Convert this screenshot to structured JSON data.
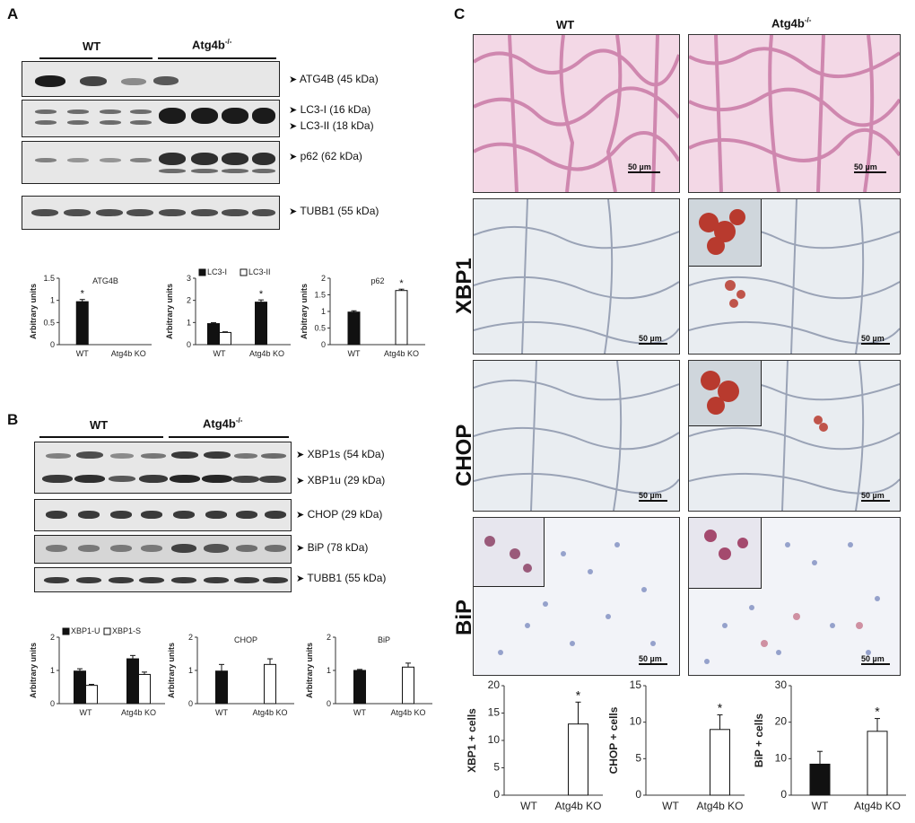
{
  "panelA": {
    "letter": "A",
    "wt": "WT",
    "ko": "Atg4b",
    "ko_sup": "-/-",
    "blots": [
      {
        "labels": [
          "ATG4B (45 kDa)"
        ]
      },
      {
        "labels": [
          "LC3-I (16 kDa)",
          "LC3-II (18 kDa)"
        ]
      },
      {
        "labels": [
          "p62 (62 kDa)"
        ]
      },
      {
        "labels": [
          "TUBB1 (55 kDa)"
        ]
      }
    ]
  },
  "panelB": {
    "letter": "B",
    "wt": "WT",
    "ko": "Atg4b",
    "ko_sup": "-/-",
    "blots": [
      {
        "labels": [
          "XBP1s (54 kDa)",
          "XBP1u (29 kDa)"
        ]
      },
      {
        "labels": [
          "CHOP (29 kDa)"
        ]
      },
      {
        "labels": [
          "BiP (78 kDa)"
        ]
      },
      {
        "labels": [
          "TUBB1 (55 kDa)"
        ]
      }
    ]
  },
  "panelC": {
    "letter": "C",
    "col_wt": "WT",
    "col_ko": "Atg4b",
    "ko_sup": "-/-",
    "rows": [
      "XBP1",
      "CHOP",
      "BiP"
    ],
    "scale": "50 µm"
  },
  "colors": {
    "black_bar": "#111111",
    "white_bar": "#ffffff",
    "he_stain": "#f3d8e6",
    "ihc_bg": "#e9edf1",
    "dab": "#b83a2e"
  },
  "chart_data": [
    {
      "id": "A-atg4b",
      "type": "bar",
      "title": "ATG4B",
      "ylabel": "Arbitrary units",
      "ylim": [
        0,
        1.5
      ],
      "yticks": [
        "0",
        "0.5",
        "1",
        "1.5"
      ],
      "categories": [
        "WT",
        "Atg4b KO"
      ],
      "series": [
        {
          "values": [
            0.97,
            0
          ],
          "errors": [
            0.05,
            0
          ],
          "fill": "black"
        }
      ],
      "stars": [
        0
      ]
    },
    {
      "id": "A-lc3",
      "type": "bar",
      "title": "",
      "ylabel": "Arbitrary units",
      "ylim": [
        0,
        3
      ],
      "yticks": [
        "0",
        "1",
        "2",
        "3"
      ],
      "categories": [
        "WT",
        "Atg4b KO"
      ],
      "legend": [
        "LC3-I",
        "LC3-II"
      ],
      "series": [
        {
          "name": "LC3-I",
          "values": [
            0.95,
            1.92
          ],
          "errors": [
            0.04,
            0.1
          ],
          "fill": "black"
        },
        {
          "name": "LC3-II",
          "values": [
            0.55,
            0
          ],
          "errors": [
            0.03,
            0
          ],
          "fill": "white"
        }
      ],
      "stars": [
        2
      ]
    },
    {
      "id": "A-p62",
      "type": "bar",
      "title": "p62",
      "ylabel": "Arbitrary units",
      "ylim": [
        0,
        2
      ],
      "yticks": [
        "0",
        "0.5",
        "1",
        "1.5",
        "2"
      ],
      "categories": [
        "WT",
        "Atg4b KO"
      ],
      "series": [
        {
          "values": [
            0.98,
            1.63
          ],
          "errors": [
            0.04,
            0.04
          ],
          "fill": "mixed"
        }
      ],
      "stars": [
        1
      ]
    },
    {
      "id": "B-xbp1",
      "type": "bar",
      "title": "",
      "ylabel": "Arbitrary units",
      "ylim": [
        0,
        2
      ],
      "yticks": [
        "0",
        "1",
        "2"
      ],
      "categories": [
        "WT",
        "Atg4b KO"
      ],
      "legend": [
        "XBP1-U",
        "XBP1-S"
      ],
      "series": [
        {
          "name": "XBP1-U",
          "values": [
            0.98,
            1.35
          ],
          "errors": [
            0.07,
            0.1
          ],
          "fill": "black"
        },
        {
          "name": "XBP1-S",
          "values": [
            0.55,
            0.88
          ],
          "errors": [
            0.03,
            0.07
          ],
          "fill": "white"
        }
      ],
      "stars": []
    },
    {
      "id": "B-chop",
      "type": "bar",
      "title": "CHOP",
      "ylabel": "Arbitrary units",
      "ylim": [
        0,
        2
      ],
      "yticks": [
        "0",
        "1",
        "2"
      ],
      "categories": [
        "WT",
        "Atg4b KO"
      ],
      "series": [
        {
          "values": [
            0.98,
            1.18
          ],
          "errors": [
            0.2,
            0.17
          ],
          "fill": "mixed"
        }
      ],
      "stars": []
    },
    {
      "id": "B-bip",
      "type": "bar",
      "title": "BiP",
      "ylabel": "Arbitrary units",
      "ylim": [
        0,
        2
      ],
      "yticks": [
        "0",
        "1",
        "2"
      ],
      "categories": [
        "WT",
        "Atg4b KO"
      ],
      "series": [
        {
          "values": [
            1.0,
            1.1
          ],
          "errors": [
            0.03,
            0.12
          ],
          "fill": "mixed"
        }
      ],
      "stars": []
    },
    {
      "id": "C-xbp1",
      "type": "bar",
      "title": "",
      "ylabel": "XBP1 + cells",
      "ylim": [
        0,
        20
      ],
      "yticks": [
        "0",
        "5",
        "10",
        "15",
        "20"
      ],
      "categories": [
        "WT",
        "Atg4b KO"
      ],
      "series": [
        {
          "values": [
            0,
            13
          ],
          "errors": [
            0,
            4
          ],
          "fill": "mixed"
        }
      ],
      "stars": [
        1
      ]
    },
    {
      "id": "C-chop",
      "type": "bar",
      "title": "",
      "ylabel": "CHOP + cells",
      "ylim": [
        0,
        15
      ],
      "yticks": [
        "0",
        "5",
        "10",
        "15"
      ],
      "categories": [
        "WT",
        "Atg4b KO"
      ],
      "series": [
        {
          "values": [
            0,
            9
          ],
          "errors": [
            0,
            2
          ],
          "fill": "mixed"
        }
      ],
      "stars": [
        1
      ]
    },
    {
      "id": "C-bip",
      "type": "bar",
      "title": "",
      "ylabel": "BiP + cells",
      "ylim": [
        0,
        30
      ],
      "yticks": [
        "0",
        "10",
        "20",
        "30"
      ],
      "categories": [
        "WT",
        "Atg4b KO"
      ],
      "series": [
        {
          "values": [
            8.5,
            17.5
          ],
          "errors": [
            3.5,
            3.5
          ],
          "fill": "mixed"
        }
      ],
      "stars": [
        1
      ]
    }
  ]
}
